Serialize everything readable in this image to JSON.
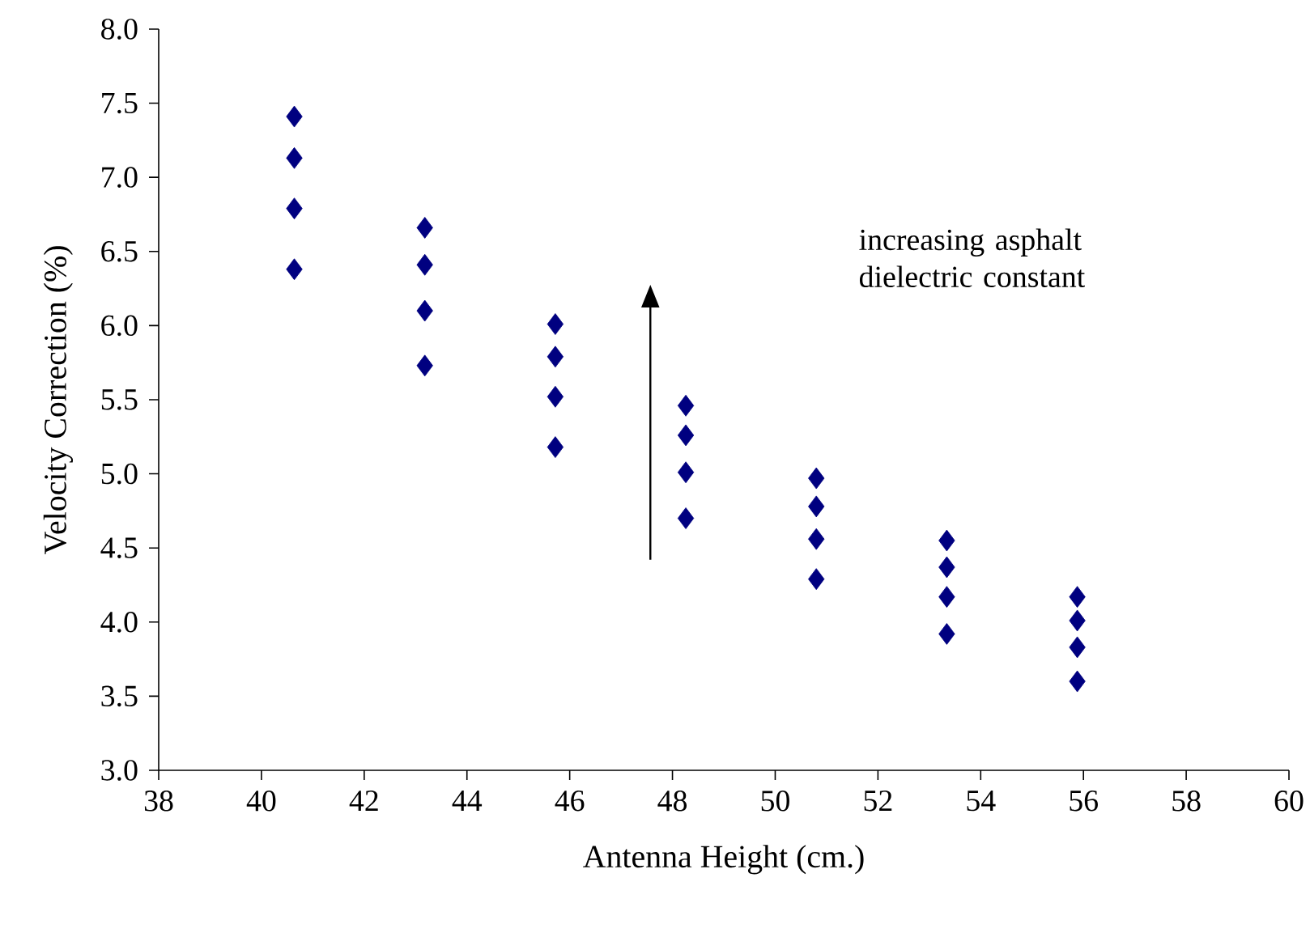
{
  "chart_data": {
    "type": "scatter",
    "xlabel": "Antenna Height (cm.)",
    "ylabel": "Velocity Correction (%)",
    "x": [
      40.64,
      40.64,
      40.64,
      40.64,
      43.18,
      43.18,
      43.18,
      43.18,
      45.72,
      45.72,
      45.72,
      45.72,
      48.26,
      48.26,
      48.26,
      48.26,
      50.8,
      50.8,
      50.8,
      50.8,
      53.34,
      53.34,
      53.34,
      53.34,
      55.88,
      55.88,
      55.88,
      55.88
    ],
    "values": [
      7.41,
      7.13,
      6.79,
      6.38,
      6.66,
      6.41,
      6.1,
      5.73,
      6.01,
      5.79,
      5.52,
      5.18,
      5.46,
      5.26,
      5.01,
      4.7,
      4.97,
      4.78,
      4.56,
      4.29,
      4.55,
      4.37,
      4.17,
      3.92,
      4.17,
      4.01,
      3.83,
      3.6
    ],
    "color": "#000080",
    "marker": "diamond",
    "grid": false,
    "xlim": [
      38,
      60
    ],
    "xticks": [
      38,
      40,
      42,
      44,
      46,
      48,
      50,
      52,
      54,
      56,
      58,
      60
    ],
    "ylim": [
      3,
      8
    ],
    "yticks": [
      {
        "value": 3,
        "label": "3.0"
      },
      {
        "value": 3.5,
        "label": "3.5"
      },
      {
        "value": 4,
        "label": "4.0"
      },
      {
        "value": 4.5,
        "label": "4.5"
      },
      {
        "value": 5,
        "label": "5.0"
      },
      {
        "value": 5.5,
        "label": "5.5"
      },
      {
        "value": 6,
        "label": "6.0"
      },
      {
        "value": 6.5,
        "label": "6.5"
      },
      {
        "value": 7,
        "label": "7.0"
      },
      {
        "value": 7.5,
        "label": "7.5"
      },
      {
        "value": 8,
        "label": "8.0"
      }
    ],
    "annotations": [
      "increasing asphalt dielectric constant"
    ]
  }
}
